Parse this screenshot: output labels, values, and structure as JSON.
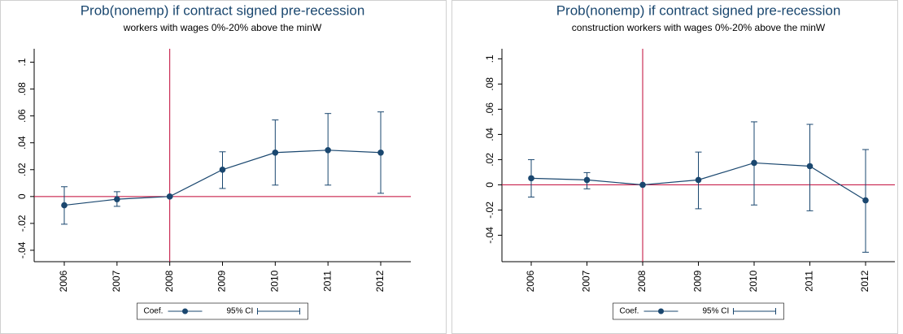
{
  "chart_data": [
    {
      "type": "line",
      "title": "Prob(nonemp) if contract signed pre-recession",
      "subtitle": "workers with wages 0%-20% above the minW",
      "categories": [
        "2006",
        "2007",
        "2008",
        "2009",
        "2010",
        "2011",
        "2012"
      ],
      "series": [
        {
          "name": "Coef.",
          "color": "#1a476f",
          "values": [
            -0.0065,
            -0.002,
            0,
            0.02,
            0.0327,
            0.0345,
            0.0327
          ]
        },
        {
          "name": "95% CI",
          "color": "#1a476f",
          "lower": [
            -0.0206,
            -0.0073,
            0,
            0.006,
            0.0085,
            0.0085,
            0.0024
          ],
          "upper": [
            0.0073,
            0.0036,
            0,
            0.0333,
            0.057,
            0.0618,
            0.063
          ]
        }
      ],
      "ylim": [
        -0.0485,
        0.11
      ],
      "yticks": [
        {
          "value": -0.04,
          "label": "-.04"
        },
        {
          "value": -0.02,
          "label": "-.02"
        },
        0,
        {
          "value": 0.02,
          "label": ".02"
        },
        {
          "value": 0.04,
          "label": ".04"
        },
        {
          "value": 0.06,
          "label": ".06"
        },
        {
          "value": 0.08,
          "label": ".08"
        },
        {
          "value": 0.1,
          "label": ".1"
        }
      ],
      "refline_y": 0,
      "refline_x": "2008",
      "refline_color": "#c10534"
    },
    {
      "type": "line",
      "title": "Prob(nonemp) if contract signed pre-recession",
      "subtitle": "construction workers with wages 0%-20% above the minW",
      "categories": [
        "2006",
        "2007",
        "2008",
        "2009",
        "2010",
        "2011",
        "2012"
      ],
      "series": [
        {
          "name": "Coef.",
          "color": "#1a476f",
          "values": [
            0.0052,
            0.0039,
            0,
            0.0039,
            0.0174,
            0.0148,
            -0.0123
          ]
        },
        {
          "name": "95% CI",
          "color": "#1a476f",
          "lower": [
            -0.0097,
            -0.0032,
            0,
            -0.019,
            -0.016,
            -0.0206,
            -0.0535
          ],
          "upper": [
            0.02,
            0.0097,
            0,
            0.026,
            0.05,
            0.048,
            0.028
          ]
        }
      ],
      "ylim": [
        -0.061,
        0.108
      ],
      "yticks": [
        {
          "value": -0.04,
          "label": "-.04"
        },
        {
          "value": -0.02,
          "label": "-.02"
        },
        0,
        {
          "value": 0.02,
          "label": ".02"
        },
        {
          "value": 0.04,
          "label": ".04"
        },
        {
          "value": 0.06,
          "label": ".06"
        },
        {
          "value": 0.08,
          "label": ".08"
        },
        {
          "value": 0.1,
          "label": ".1"
        }
      ],
      "refline_y": 0,
      "refline_x": "2008",
      "refline_color": "#c10534"
    }
  ]
}
